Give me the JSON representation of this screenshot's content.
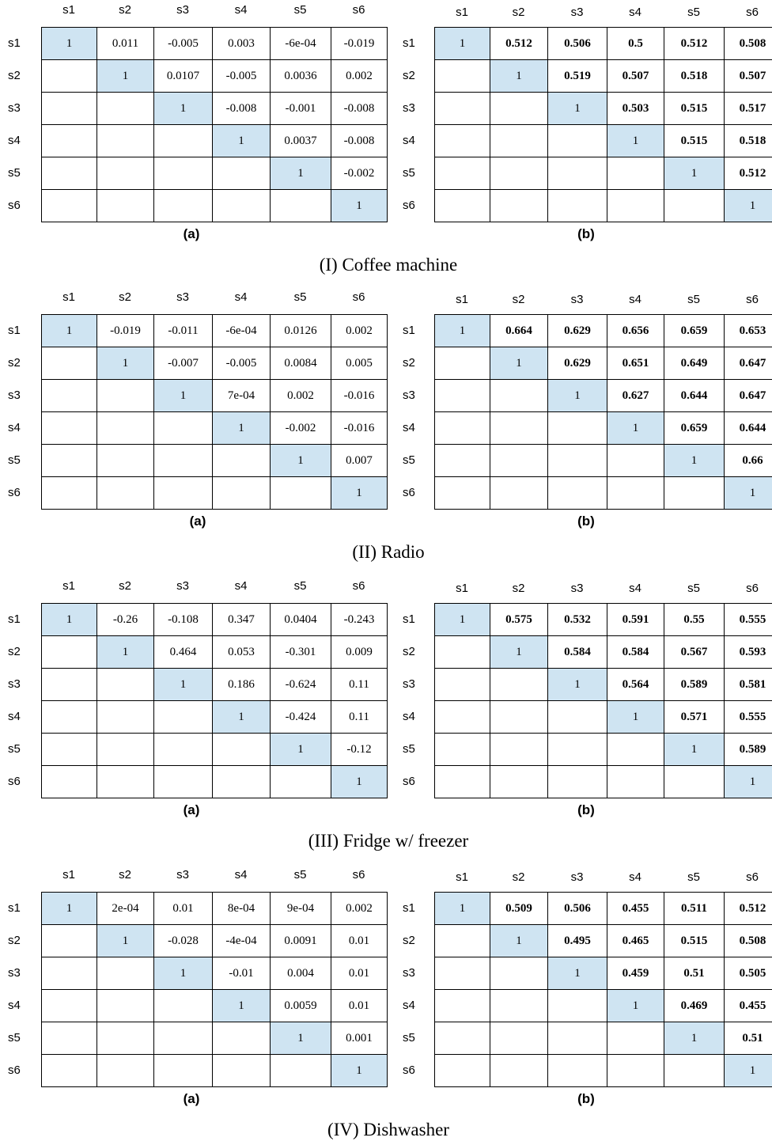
{
  "figure": {
    "col_labels": [
      "s1",
      "s2",
      "s3",
      "s4",
      "s5",
      "s6"
    ],
    "row_labels": [
      "s1",
      "s2",
      "s3",
      "s4",
      "s5",
      "s6"
    ],
    "panels": [
      {
        "caption": "(I) Coffee machine",
        "a": {
          "label": "(a)",
          "rows": [
            [
              "1",
              "0.011",
              "-0.005",
              "0.003",
              "-6e-04",
              "-0.019"
            ],
            [
              "",
              "1",
              "0.0107",
              "-0.005",
              "0.0036",
              "0.002"
            ],
            [
              "",
              "",
              "1",
              "-0.008",
              "-0.001",
              "-0.008"
            ],
            [
              "",
              "",
              "",
              "1",
              "0.0037",
              "-0.008"
            ],
            [
              "",
              "",
              "",
              "",
              "1",
              "-0.002"
            ],
            [
              "",
              "",
              "",
              "",
              "",
              "1"
            ]
          ]
        },
        "b": {
          "label": "(b)",
          "rows": [
            [
              "1",
              "0.512",
              "0.506",
              "0.5",
              "0.512",
              "0.508"
            ],
            [
              "",
              "1",
              "0.519",
              "0.507",
              "0.518",
              "0.507"
            ],
            [
              "",
              "",
              "1",
              "0.503",
              "0.515",
              "0.517"
            ],
            [
              "",
              "",
              "",
              "1",
              "0.515",
              "0.518"
            ],
            [
              "",
              "",
              "",
              "",
              "1",
              "0.512"
            ],
            [
              "",
              "",
              "",
              "",
              "",
              "1"
            ]
          ]
        }
      },
      {
        "caption": "(II) Radio",
        "a": {
          "label": "(a)",
          "rows": [
            [
              "1",
              "-0.019",
              "-0.011",
              "-6e-04",
              "0.0126",
              "0.002"
            ],
            [
              "",
              "1",
              "-0.007",
              "-0.005",
              "0.0084",
              "0.005"
            ],
            [
              "",
              "",
              "1",
              "7e-04",
              "0.002",
              "-0.016"
            ],
            [
              "",
              "",
              "",
              "1",
              "-0.002",
              "-0.016"
            ],
            [
              "",
              "",
              "",
              "",
              "1",
              "0.007"
            ],
            [
              "",
              "",
              "",
              "",
              "",
              "1"
            ]
          ]
        },
        "b": {
          "label": "(b)",
          "rows": [
            [
              "1",
              "0.664",
              "0.629",
              "0.656",
              "0.659",
              "0.653"
            ],
            [
              "",
              "1",
              "0.629",
              "0.651",
              "0.649",
              "0.647"
            ],
            [
              "",
              "",
              "1",
              "0.627",
              "0.644",
              "0.647"
            ],
            [
              "",
              "",
              "",
              "1",
              "0.659",
              "0.644"
            ],
            [
              "",
              "",
              "",
              "",
              "1",
              "0.66"
            ],
            [
              "",
              "",
              "",
              "",
              "",
              "1"
            ]
          ]
        }
      },
      {
        "caption": "(III) Fridge w/ freezer",
        "a": {
          "label": "(a)",
          "rows": [
            [
              "1",
              "-0.26",
              "-0.108",
              "0.347",
              "0.0404",
              "-0.243"
            ],
            [
              "",
              "1",
              "0.464",
              "0.053",
              "-0.301",
              "0.009"
            ],
            [
              "",
              "",
              "1",
              "0.186",
              "-0.624",
              "0.11"
            ],
            [
              "",
              "",
              "",
              "1",
              "-0.424",
              "0.11"
            ],
            [
              "",
              "",
              "",
              "",
              "1",
              "-0.12"
            ],
            [
              "",
              "",
              "",
              "",
              "",
              "1"
            ]
          ]
        },
        "b": {
          "label": "(b)",
          "rows": [
            [
              "1",
              "0.575",
              "0.532",
              "0.591",
              "0.55",
              "0.555"
            ],
            [
              "",
              "1",
              "0.584",
              "0.584",
              "0.567",
              "0.593"
            ],
            [
              "",
              "",
              "1",
              "0.564",
              "0.589",
              "0.581"
            ],
            [
              "",
              "",
              "",
              "1",
              "0.571",
              "0.555"
            ],
            [
              "",
              "",
              "",
              "",
              "1",
              "0.589"
            ],
            [
              "",
              "",
              "",
              "",
              "",
              "1"
            ]
          ]
        }
      },
      {
        "caption": "(IV) Dishwasher",
        "a": {
          "label": "(a)",
          "rows": [
            [
              "1",
              "2e-04",
              "0.01",
              "8e-04",
              "9e-04",
              "0.002"
            ],
            [
              "",
              "1",
              "-0.028",
              "-4e-04",
              "0.0091",
              "0.01"
            ],
            [
              "",
              "",
              "1",
              "-0.01",
              "0.004",
              "0.01"
            ],
            [
              "",
              "",
              "",
              "1",
              "0.0059",
              "0.01"
            ],
            [
              "",
              "",
              "",
              "",
              "1",
              "0.001"
            ],
            [
              "",
              "",
              "",
              "",
              "",
              "1"
            ]
          ]
        },
        "b": {
          "label": "(b)",
          "rows": [
            [
              "1",
              "0.509",
              "0.506",
              "0.455",
              "0.511",
              "0.512"
            ],
            [
              "",
              "1",
              "0.495",
              "0.465",
              "0.515",
              "0.508"
            ],
            [
              "",
              "",
              "1",
              "0.459",
              "0.51",
              "0.505"
            ],
            [
              "",
              "",
              "",
              "1",
              "0.469",
              "0.455"
            ],
            [
              "",
              "",
              "",
              "",
              "1",
              "0.51"
            ],
            [
              "",
              "",
              "",
              "",
              "",
              "1"
            ]
          ]
        }
      }
    ],
    "colors": {
      "diagonal_fill": "#cfe4f2",
      "border": "#000000"
    }
  }
}
